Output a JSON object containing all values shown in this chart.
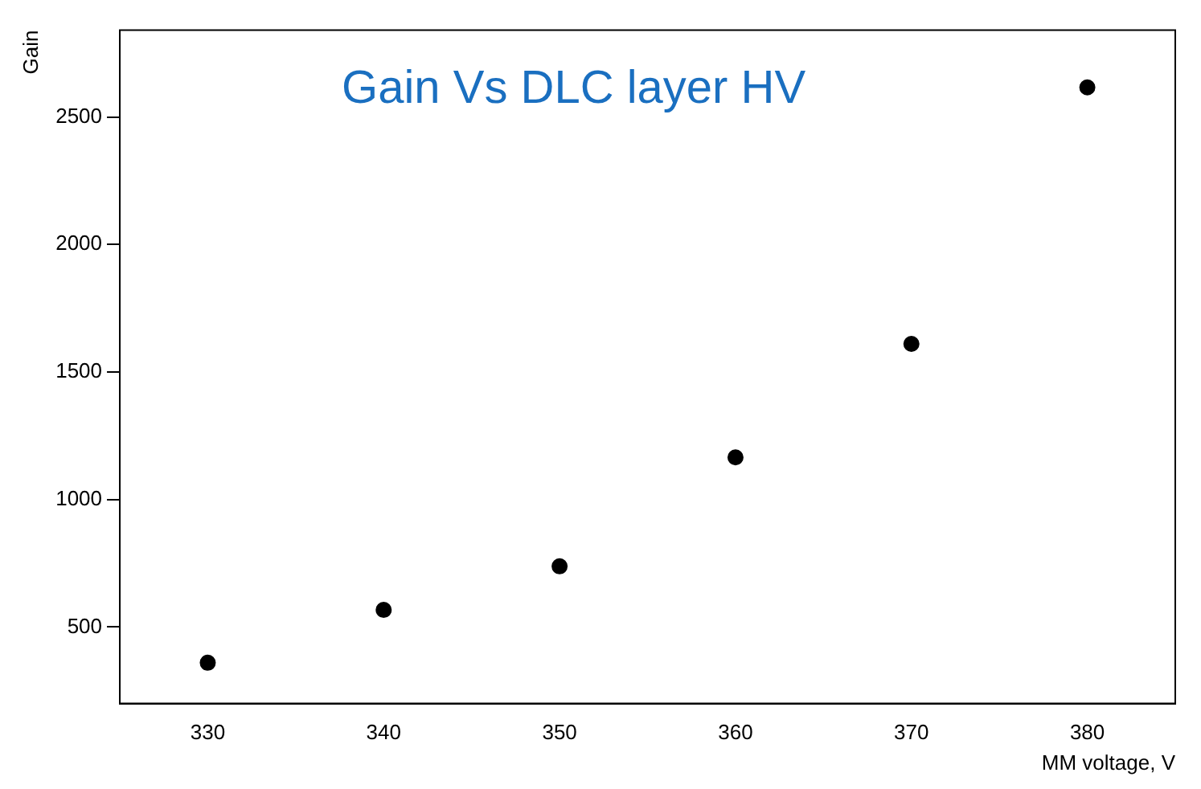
{
  "chart_data": {
    "type": "scatter",
    "title": "Gain Vs DLC layer HV",
    "xlabel": "MM voltage, V",
    "ylabel": "Gain",
    "x": [
      330,
      340,
      350,
      360,
      370,
      380
    ],
    "series": [
      {
        "color": "#000000",
        "values": [
          360,
          567,
          738,
          1165,
          1610,
          2616
        ]
      }
    ],
    "xlim": [
      325,
      385
    ],
    "xticks": [
      330,
      340,
      350,
      360,
      370,
      380
    ],
    "ylim": [
      200,
      2840
    ],
    "yticks": [
      500,
      1000,
      1500,
      2000,
      2500
    ],
    "grid": false,
    "legend": false,
    "marker": "circle"
  }
}
